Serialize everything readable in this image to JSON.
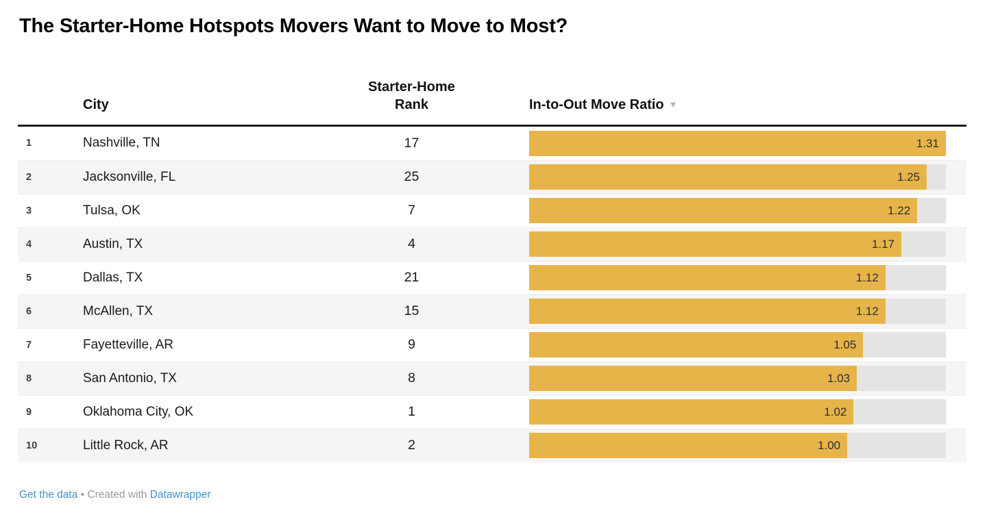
{
  "header": {
    "title": "The Starter-Home Hotspots Movers Want to Move to Most?"
  },
  "table": {
    "columns": {
      "city": "City",
      "rank": "Starter-Home Rank",
      "ratio": "In-to-Out Move Ratio",
      "sort_icon": "▼"
    },
    "rows": [
      {
        "num": "1",
        "city": "Nashville, TN",
        "rank": "17",
        "ratio": 1.31,
        "ratio_label": "1.31"
      },
      {
        "num": "2",
        "city": "Jacksonville, FL",
        "rank": "25",
        "ratio": 1.25,
        "ratio_label": "1.25"
      },
      {
        "num": "3",
        "city": "Tulsa, OK",
        "rank": "7",
        "ratio": 1.22,
        "ratio_label": "1.22"
      },
      {
        "num": "4",
        "city": "Austin, TX",
        "rank": "4",
        "ratio": 1.17,
        "ratio_label": "1.17"
      },
      {
        "num": "5",
        "city": "Dallas, TX",
        "rank": "21",
        "ratio": 1.12,
        "ratio_label": "1.12"
      },
      {
        "num": "6",
        "city": "McAllen, TX",
        "rank": "15",
        "ratio": 1.12,
        "ratio_label": "1.12"
      },
      {
        "num": "7",
        "city": "Fayetteville, AR",
        "rank": "9",
        "ratio": 1.05,
        "ratio_label": "1.05"
      },
      {
        "num": "8",
        "city": "San Antonio, TX",
        "rank": "8",
        "ratio": 1.03,
        "ratio_label": "1.03"
      },
      {
        "num": "9",
        "city": "Oklahoma City, OK",
        "rank": "1",
        "ratio": 1.02,
        "ratio_label": "1.02"
      },
      {
        "num": "10",
        "city": "Little Rock, AR",
        "rank": "2",
        "ratio": 1.0,
        "ratio_label": "1.00"
      }
    ]
  },
  "chart_data": {
    "type": "bar",
    "orientation": "horizontal",
    "title": "The Starter-Home Hotspots Movers Want to Move to Most?",
    "categories": [
      "Nashville, TN",
      "Jacksonville, FL",
      "Tulsa, OK",
      "Austin, TX",
      "Dallas, TX",
      "McAllen, TX",
      "Fayetteville, AR",
      "San Antonio, TX",
      "Oklahoma City, OK",
      "Little Rock, AR"
    ],
    "series": [
      {
        "name": "Starter-Home Rank",
        "values": [
          17,
          25,
          7,
          4,
          21,
          15,
          9,
          8,
          1,
          2
        ]
      },
      {
        "name": "In-to-Out Move Ratio",
        "values": [
          1.31,
          1.25,
          1.22,
          1.17,
          1.12,
          1.12,
          1.05,
          1.03,
          1.02,
          1.0
        ]
      }
    ],
    "row_numbers": [
      1,
      2,
      3,
      4,
      5,
      6,
      7,
      8,
      9,
      10
    ],
    "bar_series": "In-to-Out Move Ratio",
    "xlim": [
      0,
      1.31
    ],
    "grid": false,
    "legend": "none",
    "sort": {
      "column": "In-to-Out Move Ratio",
      "direction": "descending"
    },
    "data_labels": "inside-end"
  },
  "footer": {
    "get_data": "Get the data",
    "separator": "•",
    "created_with": "Created with",
    "datawrapper": "Datawrapper"
  },
  "colors": {
    "bar": "#E7B44A",
    "track": "#E4E4E4",
    "stripe": "#F5F5F5",
    "link": "#4191C9",
    "rule": "#1A1A1A"
  }
}
